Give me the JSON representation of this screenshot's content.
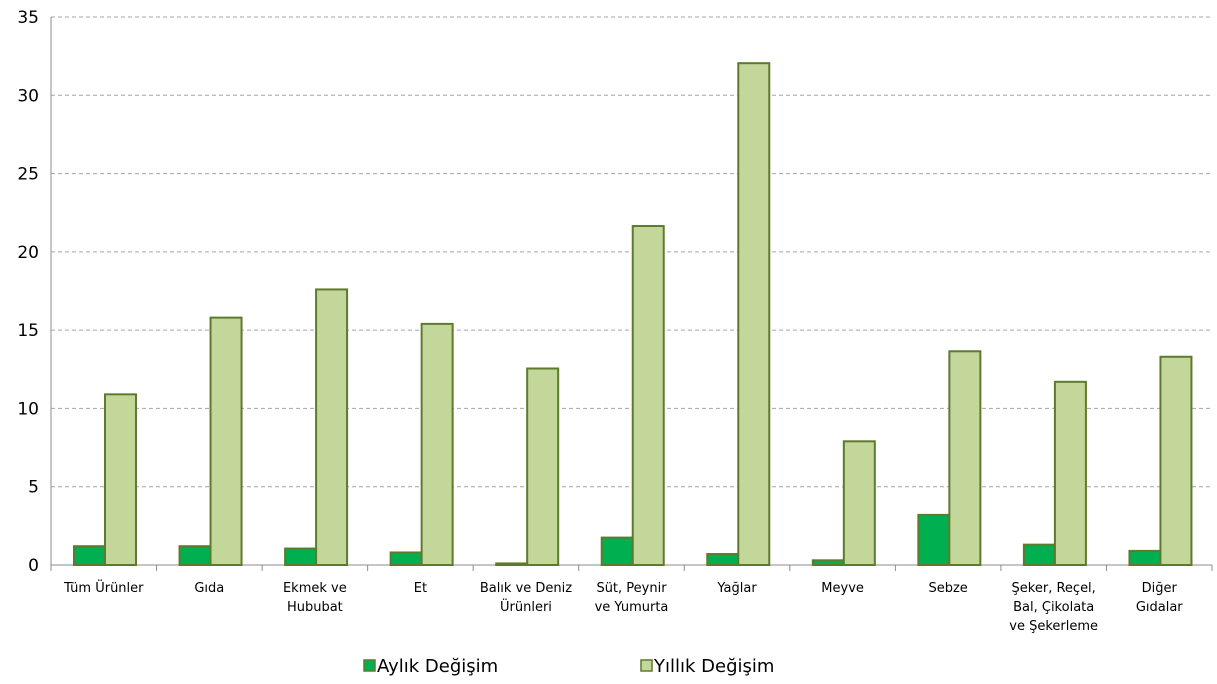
{
  "chart_data": {
    "type": "bar",
    "categories": [
      [
        "Tüm Ürünler"
      ],
      [
        "Gıda"
      ],
      [
        "Ekmek ve",
        "Hububat"
      ],
      [
        "Et"
      ],
      [
        "Balık ve Deniz",
        "Ürünleri"
      ],
      [
        "Süt, Peynir",
        "ve Yumurta"
      ],
      [
        "Yağlar"
      ],
      [
        "Meyve"
      ],
      [
        "Sebze"
      ],
      [
        "Şeker, Reçel,",
        "Bal, Çikolata",
        "ve Şekerleme"
      ],
      [
        "Diğer",
        "Gıdalar"
      ]
    ],
    "series": [
      {
        "name": "Aylık Değişim",
        "color": "#00b050",
        "values": [
          1.2,
          1.2,
          1.05,
          0.8,
          0.1,
          1.75,
          0.7,
          0.3,
          3.2,
          1.3,
          0.9
        ]
      },
      {
        "name": "Yıllık Değişim",
        "color": "#c4d79b",
        "values": [
          10.9,
          15.8,
          17.6,
          15.4,
          12.55,
          21.65,
          32.05,
          7.9,
          13.65,
          11.7,
          13.3
        ]
      }
    ],
    "bar_outline_color": "#5e7a2e",
    "ylim": [
      0,
      35
    ],
    "yticks": [
      "0",
      "5",
      "10",
      "15",
      "20",
      "25",
      "30",
      "35"
    ],
    "grid": true,
    "legend_position": "bottom"
  }
}
